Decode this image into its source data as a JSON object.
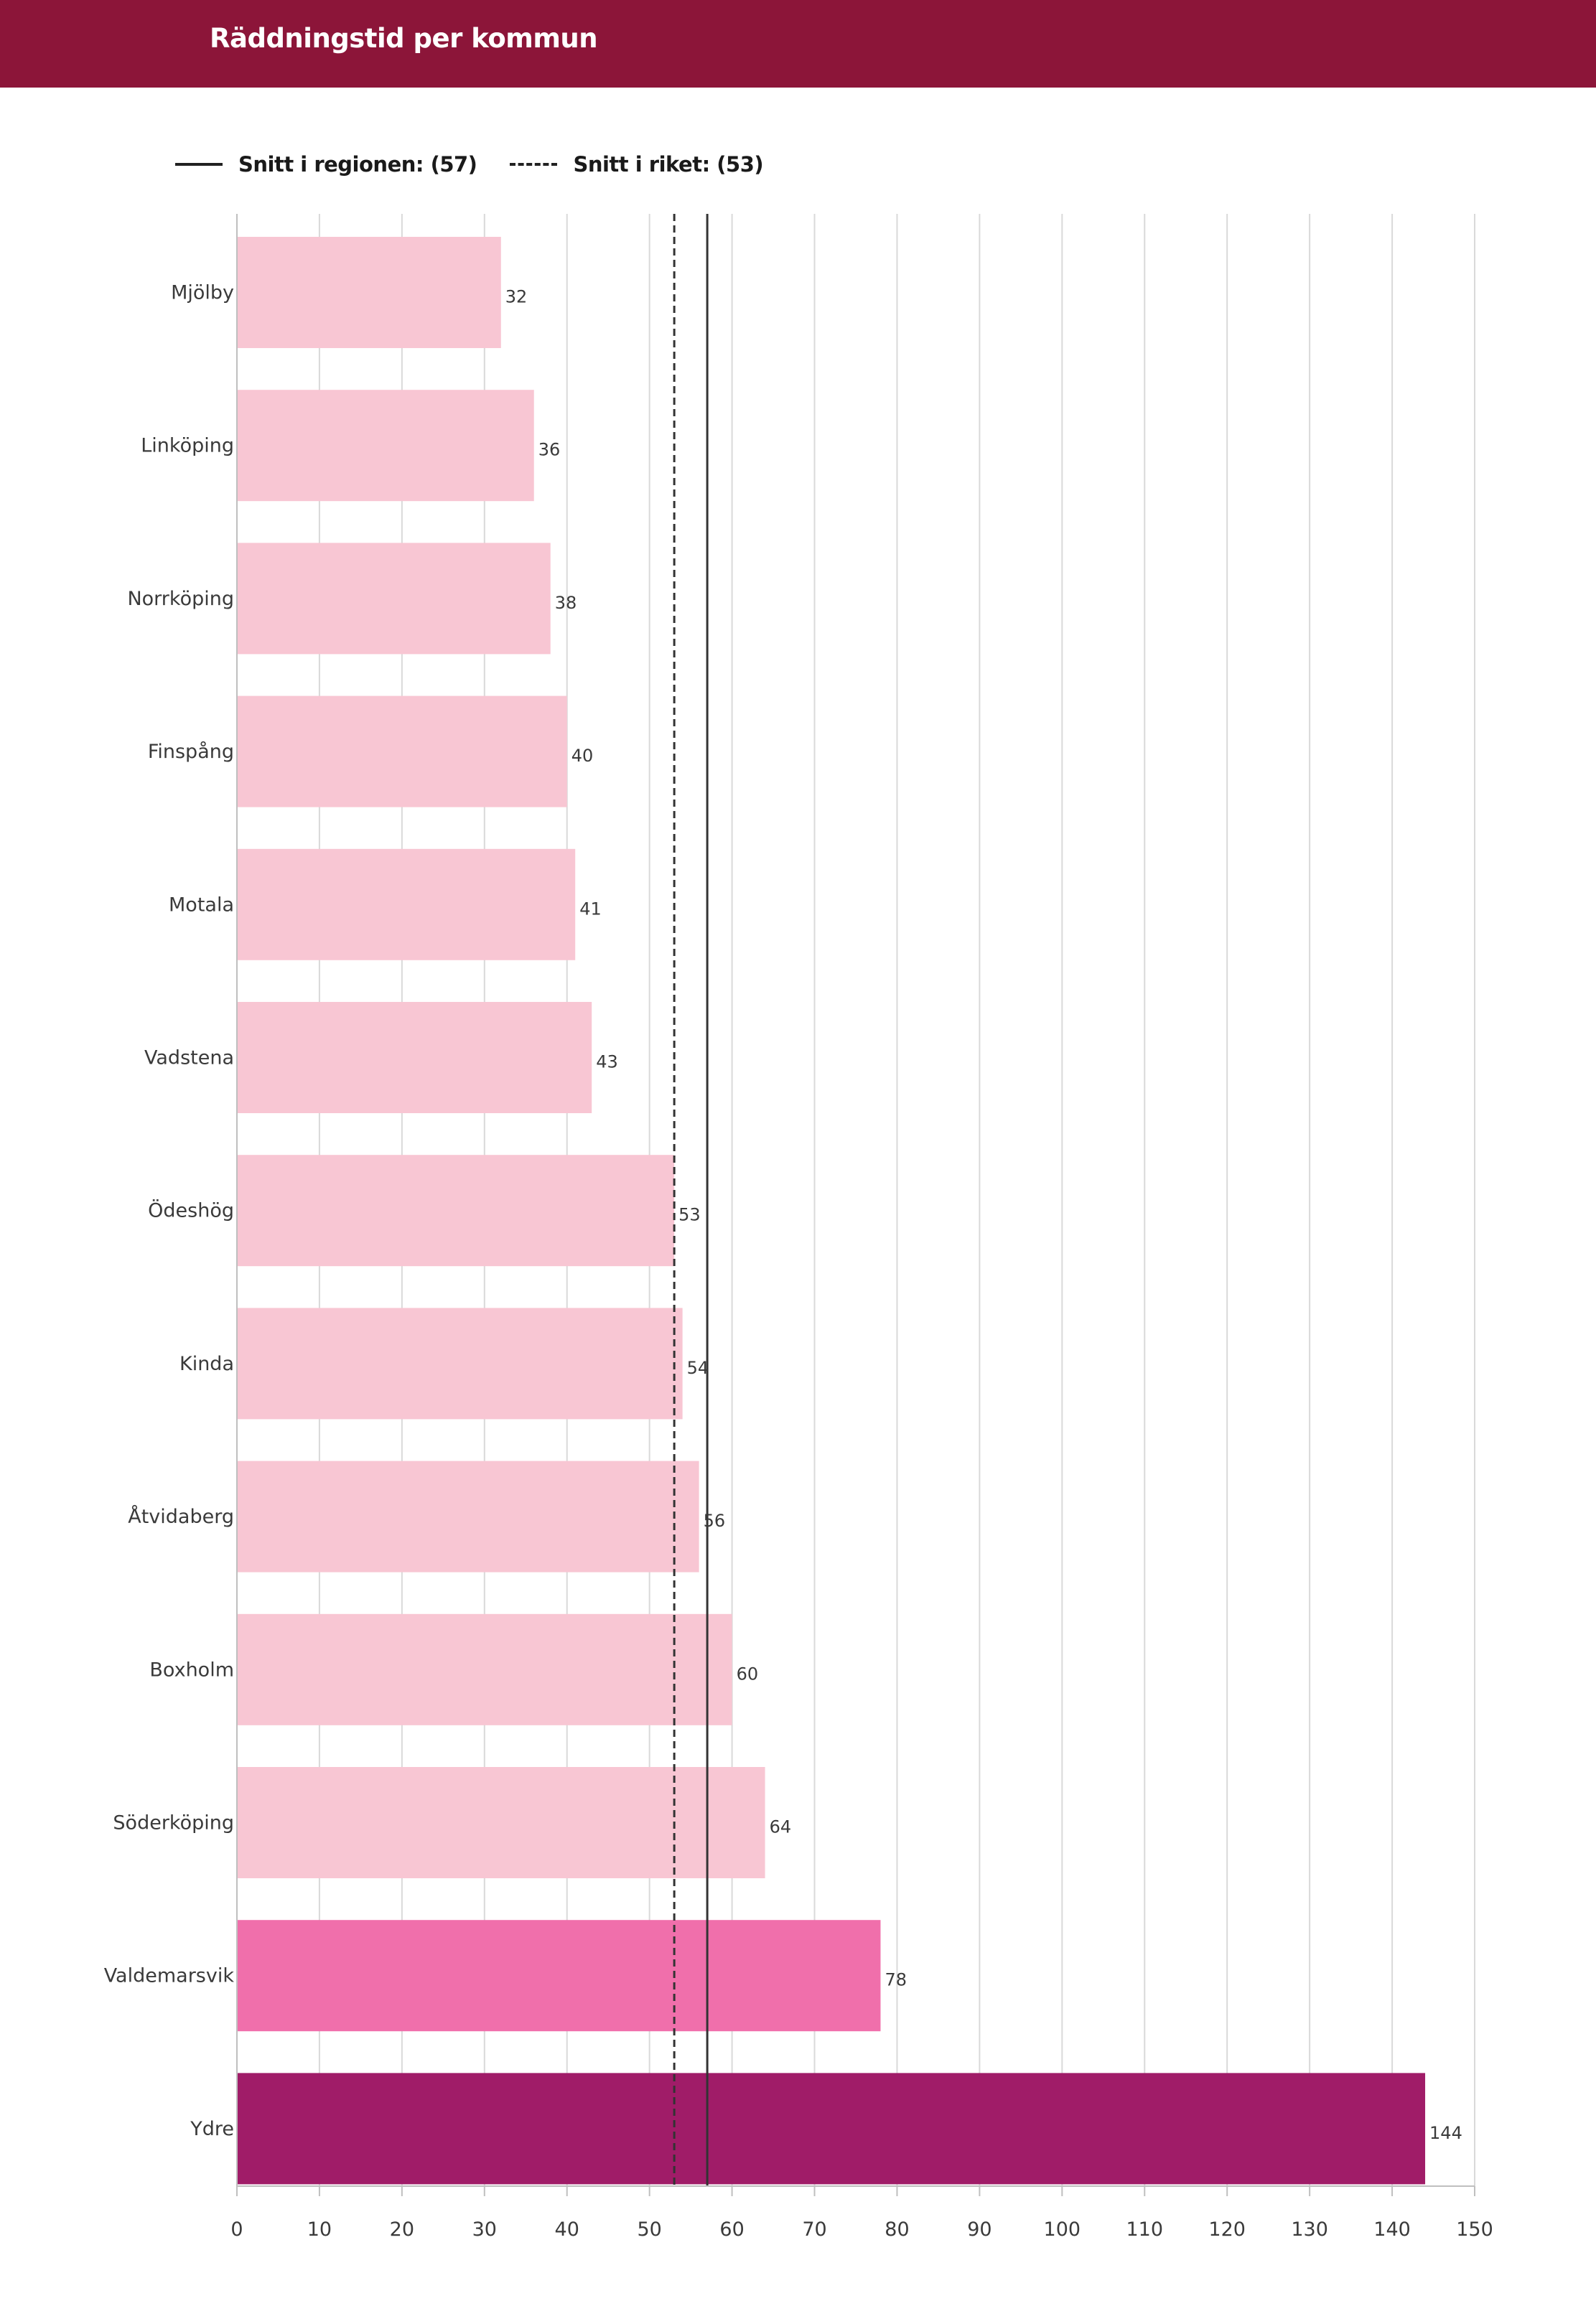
{
  "header": {
    "title": "Räddningstid per kommun"
  },
  "legend": {
    "region_label": "Snitt i regionen: (57)",
    "nation_label": "Snitt i riket: (53)"
  },
  "colors": {
    "header_bg": "#8c1539",
    "bar_light": "#f8c6d3",
    "bar_medium": "#f06fab",
    "bar_dark": "#a01c68",
    "grid": "#d9d9d9",
    "reference_line": "#333333"
  },
  "chart_data": {
    "type": "bar",
    "orientation": "horizontal",
    "title": "Räddningstid per kommun",
    "xlabel": "",
    "ylabel": "",
    "xlim": [
      0,
      150
    ],
    "x_ticks": [
      0,
      10,
      20,
      30,
      40,
      50,
      60,
      70,
      80,
      90,
      100,
      110,
      120,
      130,
      140,
      150
    ],
    "grid": true,
    "categories": [
      "Mjölby",
      "Linköping",
      "Norrköping",
      "Finspång",
      "Motala",
      "Vadstena",
      "Ödeshög",
      "Kinda",
      "Åtvidaberg",
      "Boxholm",
      "Söderköping",
      "Valdemarsvik",
      "Ydre"
    ],
    "values": [
      32,
      36,
      38,
      40,
      41,
      43,
      53,
      54,
      56,
      60,
      64,
      78,
      144
    ],
    "color_levels": [
      "light",
      "light",
      "light",
      "light",
      "light",
      "light",
      "light",
      "light",
      "light",
      "light",
      "light",
      "medium",
      "dark"
    ],
    "value_labels": [
      "32",
      "36",
      "38",
      "40",
      "41",
      "43",
      "53",
      "54",
      "56",
      "60",
      "64",
      "78",
      "144"
    ],
    "reference_lines": [
      {
        "name": "Snitt i regionen",
        "value": 57,
        "style": "solid"
      },
      {
        "name": "Snitt i riket",
        "value": 53,
        "style": "dashed"
      }
    ],
    "legend_position": "top-left"
  }
}
